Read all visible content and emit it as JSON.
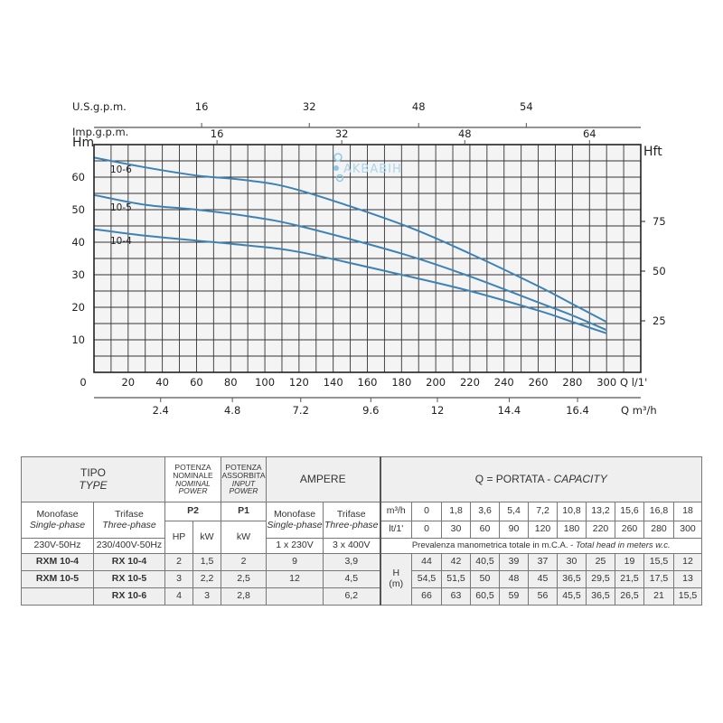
{
  "chart_data": {
    "type": "line",
    "title": "",
    "xlabel": "Q l/1'",
    "ylabel": "Hm",
    "y2label": "Hft",
    "xlim": [
      0,
      320
    ],
    "ylim": [
      0,
      70
    ],
    "grid": true,
    "x": [
      0,
      30,
      60,
      90,
      120,
      180,
      220,
      260,
      280,
      300
    ],
    "series": [
      {
        "name": "10-4",
        "values": [
          44,
          42,
          40.5,
          39,
          37,
          30,
          25,
          19,
          15.5,
          12
        ]
      },
      {
        "name": "10-5",
        "values": [
          54.5,
          51.5,
          50,
          48,
          45,
          36.5,
          29.5,
          21.5,
          17.5,
          13
        ]
      },
      {
        "name": "10-6",
        "values": [
          66,
          63,
          60.5,
          59,
          56,
          45.5,
          36.5,
          26.5,
          21,
          15.5
        ]
      }
    ],
    "x_ticks": [
      "0",
      "20",
      "40",
      "60",
      "80",
      "100",
      "120",
      "140",
      "160",
      "180",
      "200",
      "220",
      "240",
      "260",
      "280",
      "300"
    ],
    "y_ticks": [
      "10",
      "20",
      "30",
      "40",
      "50",
      "60"
    ],
    "y2_ticks": [
      "25",
      "50",
      "75"
    ],
    "m3h_axis": {
      "label": "Q m³/h",
      "ticks": [
        "2.4",
        "4.8",
        "7.2",
        "9.6",
        "12",
        "14.4",
        "16.4"
      ]
    },
    "usgpm_axis": {
      "label": "U.S.g.p.m.",
      "ticks": [
        "16",
        "32",
        "48",
        "54"
      ]
    },
    "impgpm_axis": {
      "label": "Imp.g.p.m.",
      "ticks": [
        "16",
        "32",
        "48",
        "64"
      ]
    },
    "curve_color": "#3d82b5",
    "watermark": "AKBABIH"
  },
  "table": {
    "tipo": "TIPO",
    "type": "TYPE",
    "pot_nom": [
      "POTENZA",
      "NOMINALE"
    ],
    "nom_power": [
      "NOMINAL",
      "POWER"
    ],
    "pot_ass": [
      "POTENZA",
      "ASSORBITA"
    ],
    "input_power": [
      "INPUT",
      "POWER"
    ],
    "ampere": "AMPERE",
    "capacity_it": "Q = PORTATA - ",
    "capacity_en": "CAPACITY",
    "monofase": "Monofase",
    "single_phase": "Single-phase",
    "trifase": "Trifase",
    "three_phase": "Three-phase",
    "p2": "P2",
    "p1": "P1",
    "hp": "HP",
    "kw": "kW",
    "m3h": "m³/h",
    "lt": "lt/1'",
    "m3h_values": [
      "0",
      "1,8",
      "3,6",
      "5,4",
      "7,2",
      "10,8",
      "13,2",
      "15,6",
      "16,8",
      "18"
    ],
    "lt_values": [
      "0",
      "30",
      "60",
      "90",
      "120",
      "180",
      "220",
      "260",
      "280",
      "300"
    ],
    "v_mono": "230V-50Hz",
    "v_tri": "230/400V-50Hz",
    "a_mono": "1 x 230V",
    "a_tri": "3 x 400V",
    "head_it": "Prevalenza manometrica totale in m.C.A. - ",
    "head_en": "Total head in meters w.c.",
    "h_label": "H",
    "h_unit": "(m)",
    "rows": [
      {
        "mono": "RXM 10-4",
        "tri": "RX 10-4",
        "hp": "2",
        "kw": "1,5",
        "p1": "2",
        "a1": "9",
        "a3": "3,9",
        "h": [
          "44",
          "42",
          "40,5",
          "39",
          "37",
          "30",
          "25",
          "19",
          "15,5",
          "12"
        ]
      },
      {
        "mono": "RXM 10-5",
        "tri": "RX 10-5",
        "hp": "3",
        "kw": "2,2",
        "p1": "2,5",
        "a1": "12",
        "a3": "4,5",
        "h": [
          "54,5",
          "51,5",
          "50",
          "48",
          "45",
          "36,5",
          "29,5",
          "21,5",
          "17,5",
          "13"
        ]
      },
      {
        "mono": "",
        "tri": "RX 10-6",
        "hp": "4",
        "kw": "3",
        "p1": "2,8",
        "a1": "",
        "a3": "6,2",
        "h": [
          "66",
          "63",
          "60,5",
          "59",
          "56",
          "45,5",
          "36,5",
          "26,5",
          "21",
          "15,5"
        ]
      }
    ]
  }
}
